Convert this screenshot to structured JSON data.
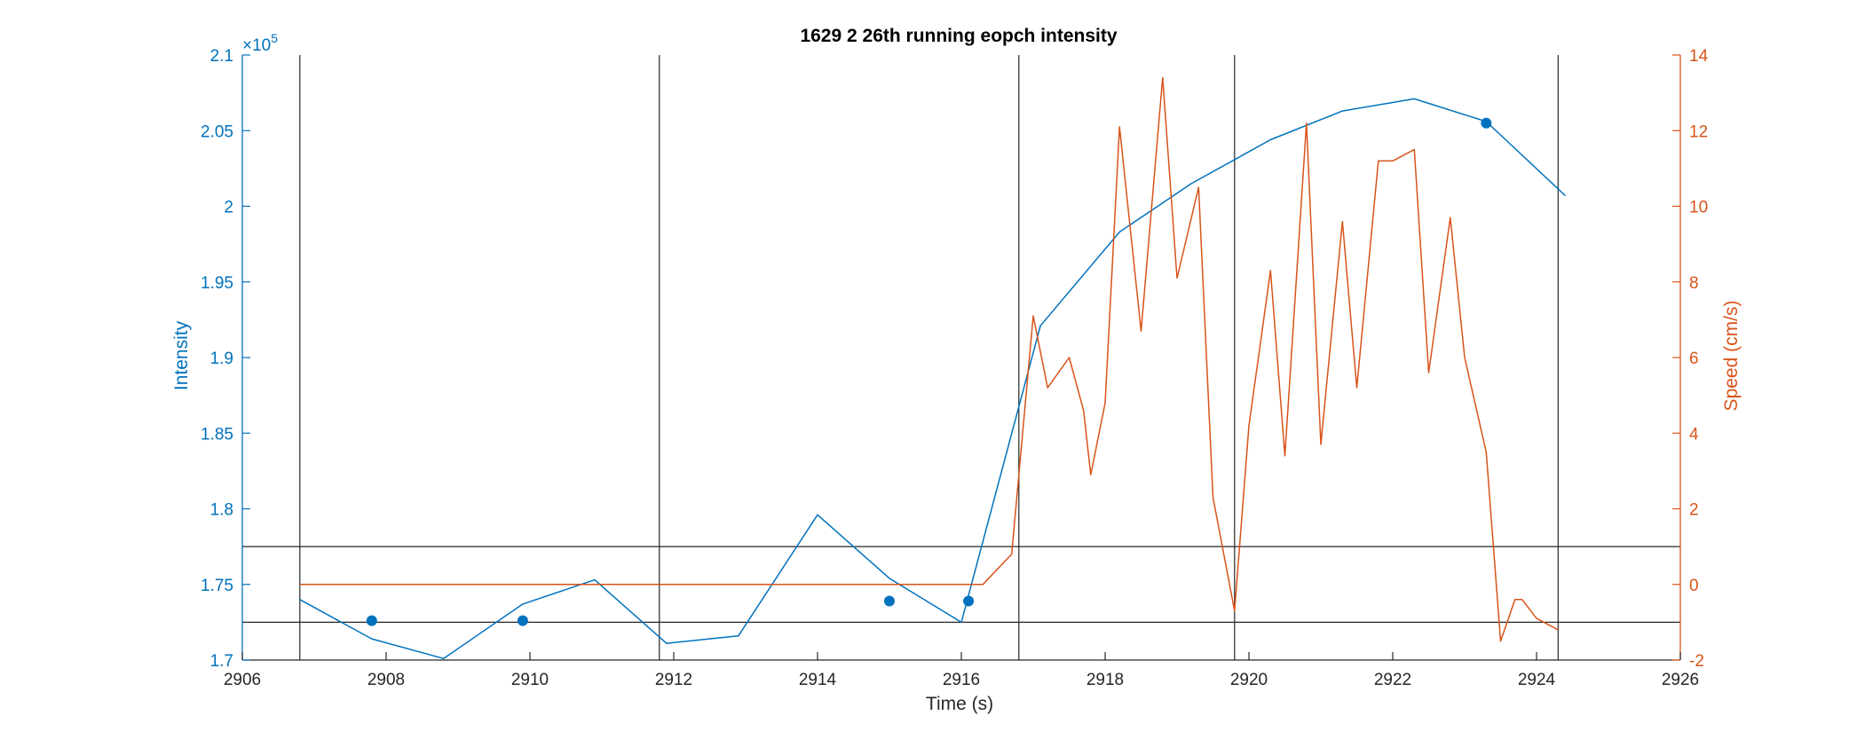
{
  "chart_data": {
    "type": "line",
    "title": "1629 2 26th running eopch intensity",
    "xlabel": "Time (s)",
    "ylabel_left": "Intensity",
    "ylabel_right": "Speed (cm/s)",
    "left_exponent_label": "×10",
    "left_exponent_power": "5",
    "xlim": [
      2906,
      2926
    ],
    "ylim_left": [
      1.7,
      2.1
    ],
    "ylim_right": [
      -2,
      14
    ],
    "x_ticks": [
      2906,
      2908,
      2910,
      2912,
      2914,
      2916,
      2918,
      2920,
      2922,
      2924,
      2926
    ],
    "x_tick_labels": [
      "2906",
      "2908",
      "2910",
      "2912",
      "2914",
      "2916",
      "2918",
      "2920",
      "2922",
      "2924",
      "2926"
    ],
    "y_left_ticks": [
      1.7,
      1.75,
      1.8,
      1.85,
      1.9,
      1.95,
      2.0,
      2.05,
      2.1
    ],
    "y_left_tick_labels": [
      "1.7",
      "1.75",
      "1.8",
      "1.85",
      "1.9",
      "1.95",
      "2",
      "2.05",
      "2.1"
    ],
    "y_right_ticks": [
      -2,
      0,
      2,
      4,
      6,
      8,
      10,
      12,
      14
    ],
    "y_right_tick_labels": [
      "-2",
      "0",
      "2",
      "4",
      "6",
      "8",
      "10",
      "12",
      "14"
    ],
    "colors": {
      "intensity": "#0072BD",
      "speed": "#D95319",
      "reference": "#262626",
      "axis_text": "#262626"
    },
    "grid": false,
    "series": [
      {
        "axis": "left",
        "style": "line",
        "x": [
          2906.8,
          2907.8,
          2908.8,
          2909.9,
          2910.9,
          2911.9,
          2912.9,
          2914.0,
          2915.0,
          2916.0,
          2917.1,
          2918.2,
          2919.2,
          2920.3,
          2921.3,
          2922.3,
          2923.3,
          2924.4
        ],
        "y": [
          1.74,
          1.714,
          1.701,
          1.737,
          1.753,
          1.711,
          1.716,
          1.796,
          1.754,
          1.725,
          1.921,
          1.983,
          2.015,
          2.044,
          2.063,
          2.071,
          2.056,
          2.007
        ]
      },
      {
        "axis": "left",
        "style": "markers",
        "x": [
          2907.8,
          2909.9,
          2915.0,
          2916.1,
          2923.3
        ],
        "y": [
          1.726,
          1.726,
          1.739,
          1.739,
          2.055
        ]
      },
      {
        "axis": "right",
        "style": "line",
        "x": [
          2906.8,
          2916.3,
          2916.7,
          2917.0,
          2917.2,
          2917.5,
          2917.7,
          2917.8,
          2918.0,
          2918.2,
          2918.5,
          2918.8,
          2919.0,
          2919.3,
          2919.5,
          2919.8,
          2920.0,
          2920.3,
          2920.5,
          2920.8,
          2921.0,
          2921.3,
          2921.5,
          2921.8,
          2922.0,
          2922.3,
          2922.5,
          2922.8,
          2923.0,
          2923.3,
          2923.5,
          2923.7,
          2923.8,
          2924.0,
          2924.3
        ],
        "y": [
          0,
          0,
          0.8,
          7.1,
          5.2,
          6.0,
          4.6,
          2.9,
          4.8,
          12.1,
          6.7,
          13.4,
          8.1,
          10.5,
          2.3,
          -0.7,
          4.2,
          8.3,
          3.4,
          12.2,
          3.7,
          9.6,
          5.2,
          11.2,
          11.2,
          11.5,
          5.6,
          9.7,
          6.0,
          3.5,
          -1.5,
          -0.4,
          -0.4,
          -0.9,
          -1.2
        ]
      }
    ],
    "reference_lines": {
      "vertical_x": [
        2906.8,
        2911.8,
        2916.8,
        2919.8,
        2924.3
      ],
      "horizontal_right": [
        1.0,
        -1.0
      ]
    }
  }
}
